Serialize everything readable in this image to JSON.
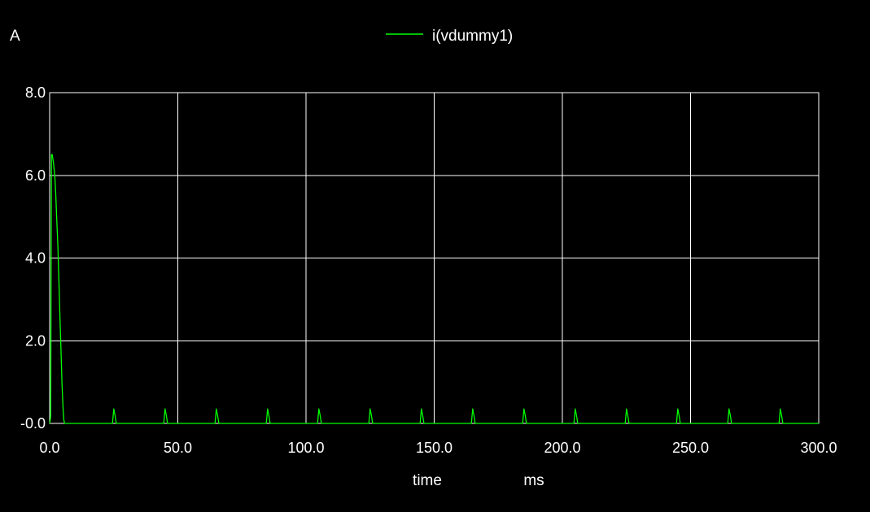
{
  "colors": {
    "background": "#000000",
    "grid": "#ffffff",
    "text": "#ffffff",
    "series": "#00ff00"
  },
  "chart_data": {
    "type": "line",
    "title": "",
    "xlabel": "time",
    "xunit": "ms",
    "ylabel": "A",
    "xlim": [
      0,
      300
    ],
    "ylim": [
      0,
      8
    ],
    "grid": true,
    "legend_placement": "top-center",
    "xticks": [
      "0.0",
      "50.0",
      "100.0",
      "150.0",
      "200.0",
      "250.0",
      "300.0"
    ],
    "yticks": [
      "-0.0",
      "2.0",
      "4.0",
      "6.0",
      "8.0"
    ],
    "series": [
      {
        "name": "i(vdummy1)",
        "x": [
          0,
          0.3,
          0.4,
          0.7,
          1.0,
          1.5,
          2.0,
          2.4,
          2.8,
          3.2,
          3.6,
          4.0,
          4.4,
          4.8,
          5.2,
          5.5,
          5.8,
          24.5,
          25.0,
          25.5,
          26.0,
          26.5,
          44.5,
          45.0,
          45.5,
          46.0,
          46.5,
          64.5,
          65.0,
          65.5,
          66.0,
          66.5,
          84.5,
          85.0,
          85.5,
          86.0,
          86.5,
          104.5,
          105.0,
          105.5,
          106.0,
          106.5,
          124.5,
          125.0,
          125.5,
          126.0,
          126.5,
          144.5,
          145.0,
          145.5,
          146.0,
          146.5,
          164.5,
          165.0,
          165.5,
          166.0,
          166.5,
          184.5,
          185.0,
          185.5,
          186.0,
          186.5,
          204.5,
          205.0,
          205.5,
          206.0,
          206.5,
          224.5,
          225.0,
          225.5,
          226.0,
          226.5,
          244.5,
          245.0,
          245.5,
          246.0,
          246.5,
          264.5,
          265.0,
          265.5,
          266.0,
          266.5,
          284.5,
          285.0,
          285.5,
          286.0,
          286.5,
          300
        ],
        "y": [
          0,
          0.1,
          0.2,
          6.5,
          6.5,
          6.3,
          6.0,
          5.5,
          4.9,
          4.3,
          3.5,
          2.6,
          1.8,
          1.0,
          0.4,
          0.1,
          0,
          0,
          0.35,
          0.2,
          0,
          0,
          0,
          0.35,
          0.2,
          0,
          0,
          0,
          0.35,
          0.2,
          0,
          0,
          0,
          0.35,
          0.2,
          0,
          0,
          0,
          0.35,
          0.2,
          0,
          0,
          0,
          0.35,
          0.2,
          0,
          0,
          0,
          0.35,
          0.2,
          0,
          0,
          0,
          0.35,
          0.2,
          0,
          0,
          0,
          0.35,
          0.2,
          0,
          0,
          0,
          0.35,
          0.2,
          0,
          0,
          0,
          0.35,
          0.2,
          0,
          0,
          0,
          0.35,
          0.2,
          0,
          0,
          0,
          0.35,
          0.2,
          0,
          0,
          0,
          0.35,
          0.2,
          0,
          0,
          0
        ]
      }
    ]
  }
}
